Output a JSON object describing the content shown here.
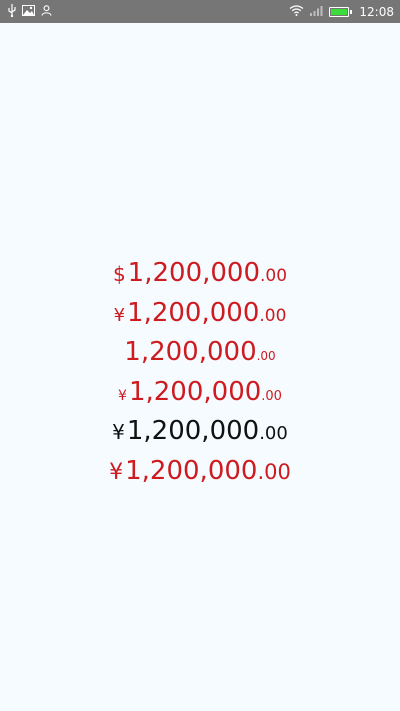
{
  "status_bar": {
    "time": "12:08",
    "left_icons": [
      "usb-icon",
      "image-icon",
      "person-icon"
    ],
    "right_icons": [
      "wifi-icon",
      "signal-icon",
      "battery-icon"
    ],
    "battery_level": 1.0,
    "battery_color": "#3ddc3d"
  },
  "prices": [
    {
      "symbol": "$",
      "integer": "1,200,000",
      "decimal": ".00",
      "color": "#cd1b20"
    },
    {
      "symbol": "¥",
      "integer": "1,200,000",
      "decimal": ".00",
      "color": "#cd1b20"
    },
    {
      "symbol": "",
      "integer": "1,200,000",
      "decimal": ".00",
      "color": "#cd1b20"
    },
    {
      "symbol": "¥",
      "integer": "1,200,000",
      "decimal": ".00",
      "color": "#cd1b20"
    },
    {
      "symbol": "¥",
      "integer": "1,200,000",
      "decimal": ".00",
      "color": "#111111"
    },
    {
      "symbol": "¥",
      "integer": "1,200,000",
      "decimal": ".00",
      "color": "#cd1b20"
    }
  ],
  "colors": {
    "background": "#f5fbfe",
    "status_bar": "#767676",
    "accent_red": "#cd1b20",
    "text_black": "#111111"
  }
}
